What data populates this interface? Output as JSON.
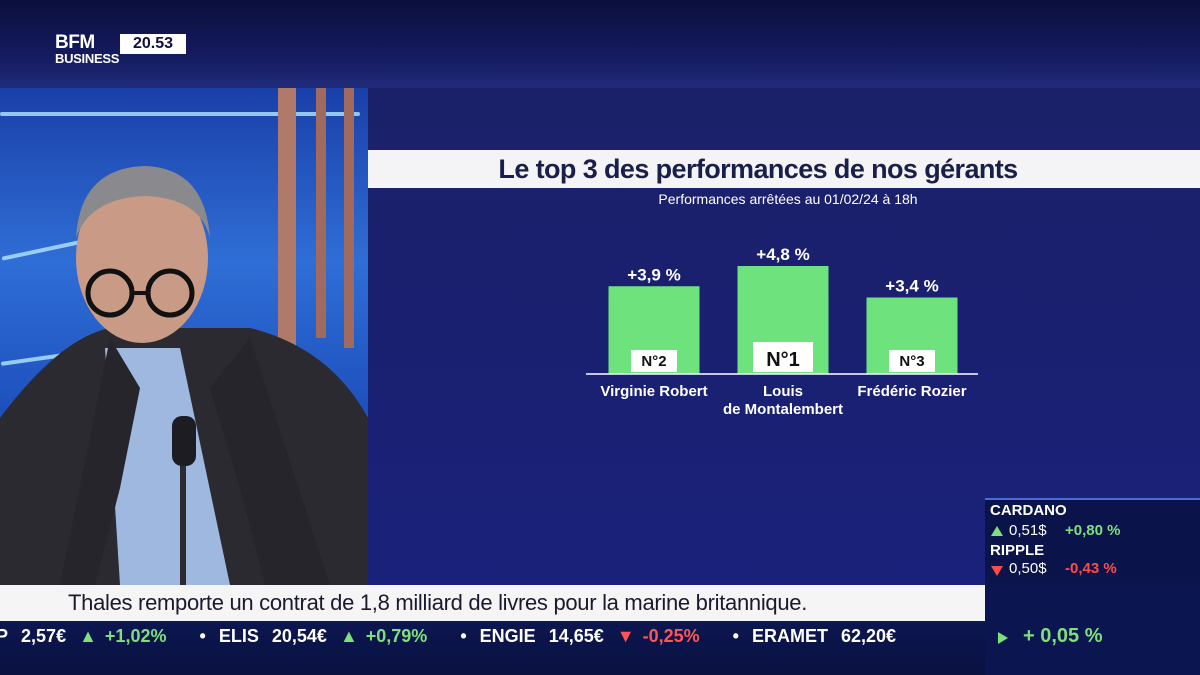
{
  "channel": {
    "logo_top": "BFM",
    "logo_bottom": "BUSINESS",
    "time": "20.53"
  },
  "chart_data": {
    "type": "bar",
    "title": "Le top 3 des performances de nos gérants",
    "subtitle": "Performances arrêtées au 01/02/24 à 18h",
    "categories": [
      "Virginie Robert",
      "Louis de Montalembert",
      "Frédéric Rozier"
    ],
    "category_lines": [
      [
        "Virginie Robert"
      ],
      [
        "Louis",
        "de Montalembert"
      ],
      [
        "Frédéric Rozier"
      ]
    ],
    "values": [
      3.9,
      4.8,
      3.4
    ],
    "value_labels": [
      "+3,9 %",
      "+4,8 %",
      "+3,4 %"
    ],
    "ranks": [
      "N°2",
      "N°1",
      "N°3"
    ],
    "bar_color": "#6ee27c",
    "ylim": [
      0,
      5.2
    ]
  },
  "crypto": [
    {
      "name": "CARDANO",
      "price": "0,51$",
      "change": "+0,80 %",
      "direction": "up"
    },
    {
      "name": "RIPPLE",
      "price": "0,50$",
      "change": "-0,43 %",
      "direction": "down"
    }
  ],
  "headline": "Thales remporte un contrat de 1,8 milliard de livres pour la marine britannique.",
  "ticker": [
    {
      "name": "P",
      "price": "2,57€",
      "change": "+1,02%",
      "direction": "up"
    },
    {
      "name": "ELIS",
      "price": "20,54€",
      "change": "+0,79%",
      "direction": "up"
    },
    {
      "name": "ENGIE",
      "price": "14,65€",
      "change": "-0,25%",
      "direction": "down"
    },
    {
      "name": "ERAMET",
      "price": "62,20€",
      "change": "",
      "direction": "none"
    }
  ],
  "ticker_right": {
    "change": "+ 0,05 %",
    "direction": "up"
  },
  "colors": {
    "up": "#7de07a",
    "down": "#ff4a4a",
    "panel": "#1a2070"
  }
}
